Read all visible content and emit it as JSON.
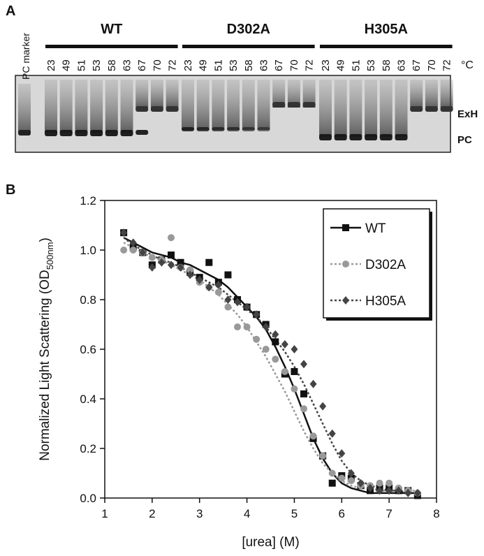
{
  "gel": {
    "panel_label": "A",
    "lane_marker": "PC marker",
    "groups": [
      {
        "name": "WT",
        "lanes": [
          "23",
          "49",
          "51",
          "53",
          "58",
          "63",
          "67",
          "70",
          "72"
        ]
      },
      {
        "name": "D302A",
        "lanes": [
          "23",
          "49",
          "51",
          "53",
          "58",
          "63",
          "67",
          "70",
          "72"
        ]
      },
      {
        "name": "H305A",
        "lanes": [
          "23",
          "49",
          "51",
          "53",
          "58",
          "63",
          "67",
          "70",
          "72"
        ]
      }
    ],
    "unit": "°C",
    "bands": [
      "ExH",
      "PC"
    ]
  },
  "chart_data": {
    "type": "scatter",
    "panel_label": "B",
    "x_label": "[urea] (M)",
    "y_label": "Normalized Light Scattering (OD",
    "y_label_sub": "500nm",
    "y_label_end": ")",
    "xlim": [
      1,
      8
    ],
    "ylim": [
      0,
      1.2
    ],
    "xticks": [
      1,
      2,
      3,
      4,
      5,
      6,
      7,
      8
    ],
    "yticks": [
      {
        "value": 0,
        "label": "0.0"
      },
      0.2,
      0.4,
      0.6,
      0.8,
      {
        "value": 1,
        "label": "1.0"
      },
      1.2
    ],
    "legend": "top-right",
    "x": [
      1.4,
      1.6,
      1.8,
      2.0,
      2.2,
      2.4,
      2.6,
      2.8,
      3.0,
      3.2,
      3.4,
      3.6,
      3.8,
      4.0,
      4.2,
      4.4,
      4.6,
      4.8,
      5.0,
      5.2,
      5.4,
      5.6,
      5.8,
      6.0,
      6.2,
      6.4,
      6.6,
      6.8,
      7.0,
      7.2,
      7.4,
      7.6
    ],
    "series": [
      {
        "name": "WT",
        "color": "#111111",
        "marker": "square",
        "dash": "solid",
        "values": [
          1.07,
          1.01,
          0.99,
          0.94,
          0.96,
          0.98,
          0.95,
          0.91,
          0.89,
          0.95,
          0.87,
          0.9,
          0.8,
          0.77,
          0.74,
          0.7,
          0.63,
          0.5,
          0.51,
          0.42,
          0.24,
          0.17,
          0.06,
          0.09,
          0.08,
          0.05,
          0.03,
          0.04,
          0.04,
          0.03,
          0.03,
          0.01
        ],
        "fit_values": [
          1.05,
          1.03,
          1.01,
          0.99,
          0.98,
          0.97,
          0.95,
          0.94,
          0.92,
          0.9,
          0.88,
          0.85,
          0.81,
          0.77,
          0.73,
          0.68,
          0.61,
          0.53,
          0.44,
          0.34,
          0.24,
          0.16,
          0.1,
          0.06,
          0.04,
          0.03,
          0.02,
          0.02,
          0.02,
          0.02,
          0.02,
          0.02
        ]
      },
      {
        "name": "D302A",
        "color": "#999999",
        "marker": "circle",
        "dash": "dotted",
        "values": [
          1.0,
          1.0,
          0.99,
          0.97,
          0.96,
          1.05,
          0.93,
          0.92,
          0.87,
          0.85,
          0.83,
          0.77,
          0.69,
          0.69,
          0.64,
          0.6,
          0.56,
          0.51,
          0.44,
          0.36,
          0.25,
          0.17,
          0.1,
          0.08,
          0.07,
          0.05,
          0.05,
          0.06,
          0.06,
          0.04,
          0.03,
          0.02
        ],
        "fit_values": [
          1.03,
          1.01,
          0.99,
          0.97,
          0.96,
          0.94,
          0.92,
          0.9,
          0.88,
          0.85,
          0.82,
          0.78,
          0.74,
          0.69,
          0.63,
          0.57,
          0.5,
          0.43,
          0.35,
          0.27,
          0.2,
          0.14,
          0.1,
          0.07,
          0.05,
          0.04,
          0.04,
          0.03,
          0.03,
          0.03,
          0.03,
          0.03
        ]
      },
      {
        "name": "H305A",
        "color": "#444444",
        "marker": "diamond",
        "dash": "dotted",
        "values": [
          1.07,
          1.03,
          0.99,
          0.93,
          0.95,
          0.94,
          0.93,
          0.9,
          0.88,
          0.85,
          0.86,
          0.8,
          0.79,
          0.77,
          0.74,
          0.69,
          0.66,
          0.62,
          0.6,
          0.54,
          0.46,
          0.37,
          0.26,
          0.18,
          0.1,
          0.06,
          0.04,
          0.03,
          0.03,
          0.03,
          0.02,
          0.02
        ],
        "fit_values": [
          1.05,
          1.02,
          1.0,
          0.98,
          0.96,
          0.95,
          0.93,
          0.91,
          0.89,
          0.87,
          0.85,
          0.82,
          0.79,
          0.76,
          0.73,
          0.69,
          0.64,
          0.59,
          0.53,
          0.46,
          0.38,
          0.3,
          0.22,
          0.15,
          0.1,
          0.07,
          0.05,
          0.04,
          0.03,
          0.03,
          0.02,
          0.02
        ]
      }
    ]
  }
}
